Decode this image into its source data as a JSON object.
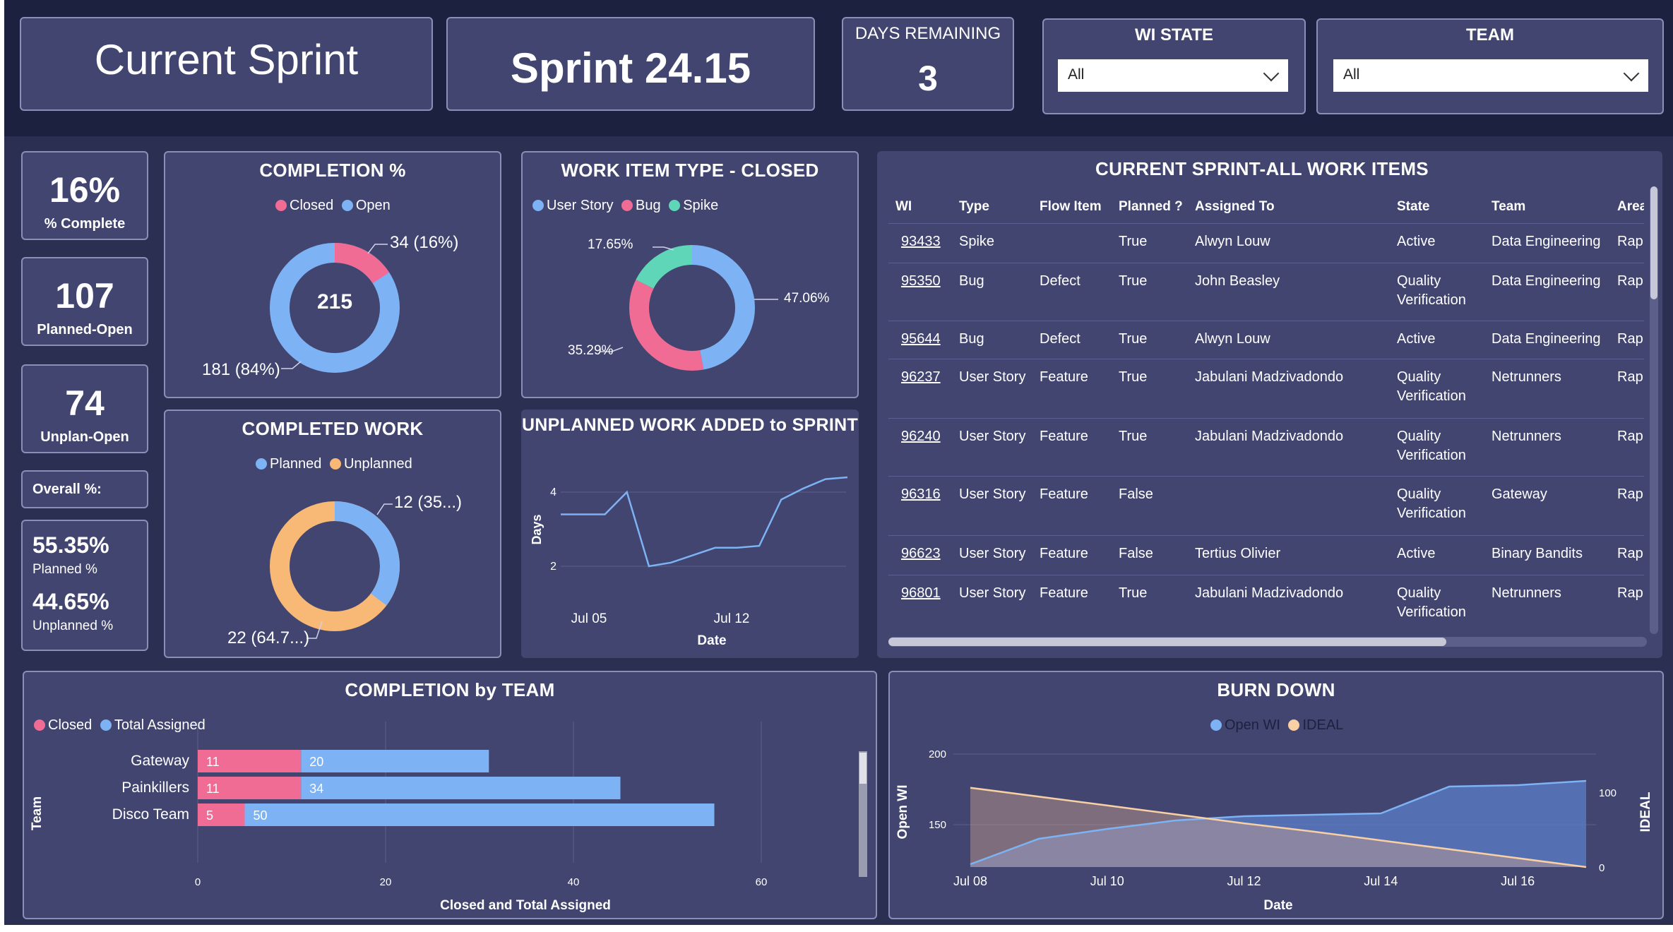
{
  "header": {
    "title": "Current Sprint",
    "sprint_name": "Sprint 24.15",
    "days_remaining_label": "DAYS REMAINING",
    "days_remaining_value": "3",
    "wi_state_label": "WI STATE",
    "wi_state_value": "All",
    "team_label": "TEAM",
    "team_value": "All"
  },
  "kpis": {
    "pct_complete_value": "16%",
    "pct_complete_label": "% Complete",
    "planned_open_value": "107",
    "planned_open_label": "Planned-Open",
    "unplan_open_value": "74",
    "unplan_open_label": "Unplan-Open",
    "overall_label": "Overall %:",
    "planned_pct_value": "55.35%",
    "planned_pct_label": "Planned %",
    "unplanned_pct_value": "44.65%",
    "unplanned_pct_label": "Unplanned %"
  },
  "completion": {
    "title": "COMPLETION %",
    "legend": [
      "Closed",
      "Open"
    ],
    "center": "215",
    "closed_label": "34 (16%)",
    "open_label": "181 (84%)",
    "closed_value": 34,
    "open_value": 181
  },
  "wi_type": {
    "title": "WORK ITEM TYPE - CLOSED",
    "legend": [
      "User Story",
      "Bug",
      "Spike"
    ],
    "user_story_label": "47.06%",
    "bug_label": "35.29%",
    "spike_label": "17.65%",
    "user_story_pct": 47.06,
    "bug_pct": 35.29,
    "spike_pct": 17.65
  },
  "completed_work": {
    "title": "COMPLETED WORK",
    "legend": [
      "Planned",
      "Unplanned"
    ],
    "planned_label": "12 (35...)",
    "unplanned_label": "22 (64.7...)",
    "planned_value": 12,
    "unplanned_value": 22
  },
  "unplanned_work": {
    "title": "UNPLANNED WORK ADDED to SPRINT",
    "ylabel": "Days",
    "xlabel": "Date",
    "yticks": [
      "4",
      "2"
    ],
    "xticks": [
      "Jul 05",
      "Jul 12"
    ]
  },
  "work_items": {
    "title": "CURRENT SPRINT-ALL WORK ITEMS",
    "columns": [
      "WI",
      "Type",
      "Flow Item",
      "Planned ?",
      "Assigned To",
      "State",
      "Team",
      "Area"
    ],
    "rows": [
      {
        "wi": "93433",
        "type": "Spike",
        "flow": "",
        "planned": "True",
        "assigned": "Alwyn Louw",
        "state1": "Active",
        "state2": "",
        "team": "Data Engineering",
        "area": "Rapi"
      },
      {
        "wi": "95350",
        "type": "Bug",
        "flow": "Defect",
        "planned": "True",
        "assigned": "John Beasley",
        "state1": "Quality",
        "state2": "Verification",
        "team": "Data Engineering",
        "area": "Rapi"
      },
      {
        "wi": "95644",
        "type": "Bug",
        "flow": "Defect",
        "planned": "True",
        "assigned": "Alwyn Louw",
        "state1": "Active",
        "state2": "",
        "team": "Data Engineering",
        "area": "Rapi"
      },
      {
        "wi": "96237",
        "type": "User Story",
        "flow": "Feature",
        "planned": "True",
        "assigned": "Jabulani Madzivadondo",
        "state1": "Quality",
        "state2": "Verification",
        "team": "Netrunners",
        "area": "Rapi"
      },
      {
        "wi": "96240",
        "type": "User Story",
        "flow": "Feature",
        "planned": "True",
        "assigned": "Jabulani Madzivadondo",
        "state1": "Quality",
        "state2": "Verification",
        "team": "Netrunners",
        "area": "Rapi"
      },
      {
        "wi": "96316",
        "type": "User Story",
        "flow": "Feature",
        "planned": "False",
        "assigned": "",
        "state1": "Quality",
        "state2": "Verification",
        "team": "Gateway",
        "area": "Rapi"
      },
      {
        "wi": "96623",
        "type": "User Story",
        "flow": "Feature",
        "planned": "False",
        "assigned": "Tertius Olivier",
        "state1": "Active",
        "state2": "",
        "team": "Binary Bandits",
        "area": "Rapi"
      },
      {
        "wi": "96801",
        "type": "User Story",
        "flow": "Feature",
        "planned": "True",
        "assigned": "Jabulani Madzivadondo",
        "state1": "Quality",
        "state2": "Verification",
        "team": "Netrunners",
        "area": "Rapi"
      }
    ]
  },
  "completion_by_team": {
    "title": "COMPLETION by TEAM",
    "legend": [
      "Closed",
      "Total Assigned"
    ],
    "ylabel": "Team",
    "xlabel": "Closed and Total Assigned",
    "xticks": [
      "0",
      "20",
      "40",
      "60"
    ]
  },
  "burn_down": {
    "title": "BURN DOWN",
    "legend": [
      "Open WI",
      "IDEAL"
    ],
    "ylabel_left": "Open WI",
    "ylabel_right": "IDEAL",
    "xlabel": "Date",
    "yticks_left": [
      "200",
      "150"
    ],
    "yticks_right": [
      "100",
      "0"
    ],
    "xticks": [
      "Jul 08",
      "Jul 10",
      "Jul 12",
      "Jul 14",
      "Jul 16"
    ]
  },
  "colors": {
    "pink": "#f06c95",
    "blue": "#7db3f5",
    "teal": "#5fd6b8",
    "orange": "#f8b876",
    "panel": "#41456f",
    "background": "#2b2f52"
  },
  "chart_data": [
    {
      "type": "line",
      "title": "UNPLANNED WORK ADDED to SPRINT",
      "xlabel": "Date",
      "ylabel": "Days",
      "x": [
        "Jul 04",
        "Jul 05",
        "Jul 06",
        "Jul 07",
        "Jul 08",
        "Jul 09",
        "Jul 10",
        "Jul 11",
        "Jul 12",
        "Jul 13",
        "Jul 14",
        "Jul 15",
        "Jul 16",
        "Jul 17"
      ],
      "values": [
        3.4,
        3.4,
        3.4,
        4.0,
        2.0,
        2.1,
        2.3,
        2.5,
        2.5,
        2.55,
        3.8,
        4.1,
        4.35,
        4.4
      ],
      "ylim": [
        1.5,
        4.6
      ]
    },
    {
      "type": "bar",
      "orientation": "horizontal",
      "title": "COMPLETION by TEAM",
      "xlabel": "Closed and Total Assigned",
      "ylabel": "Team",
      "categories": [
        "Gateway",
        "Painkillers",
        "Disco Team"
      ],
      "series": [
        {
          "name": "Closed",
          "values": [
            11,
            11,
            5
          ]
        },
        {
          "name": "Total Assigned",
          "values": [
            20,
            34,
            50
          ]
        }
      ],
      "xlim": [
        0,
        60
      ]
    },
    {
      "type": "area",
      "title": "BURN DOWN",
      "xlabel": "Date",
      "x": [
        "Jul 08",
        "Jul 09",
        "Jul 10",
        "Jul 11",
        "Jul 12",
        "Jul 13",
        "Jul 14",
        "Jul 15",
        "Jul 16",
        "Jul 17"
      ],
      "series": [
        {
          "name": "Open WI",
          "axis": "left",
          "values": [
            122,
            140,
            147,
            153,
            156,
            157,
            158,
            177,
            178,
            181
          ]
        },
        {
          "name": "IDEAL",
          "axis": "right",
          "values": [
            107,
            95,
            83,
            71,
            59,
            48,
            36,
            24,
            12,
            0
          ]
        }
      ],
      "ylim_left": [
        120,
        205
      ],
      "ylim_right": [
        0,
        110
      ]
    }
  ]
}
